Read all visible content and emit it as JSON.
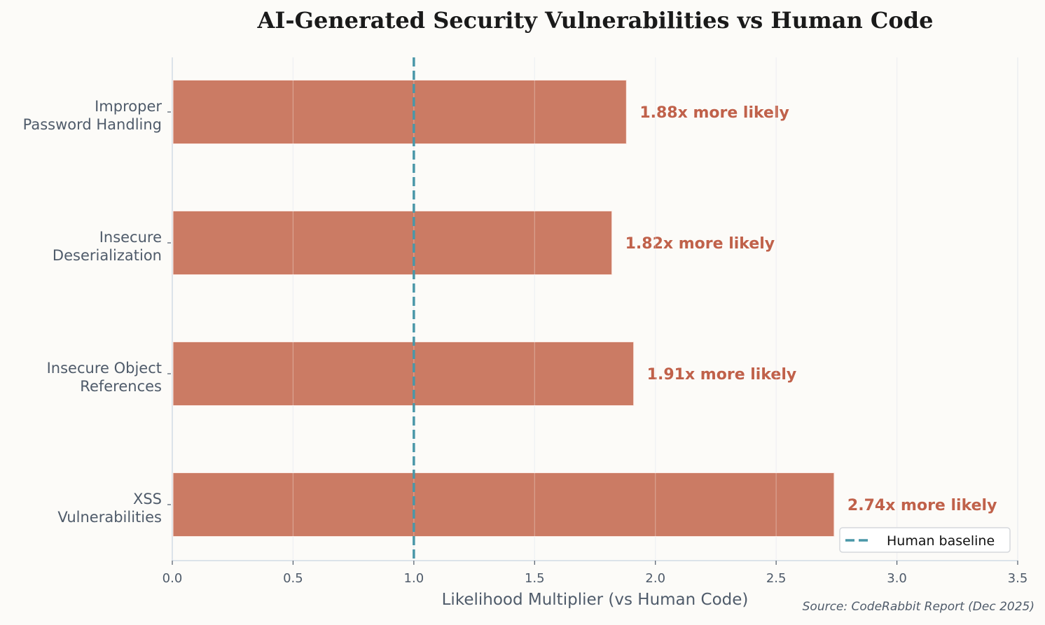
{
  "chart_data": {
    "type": "bar",
    "orientation": "horizontal",
    "title": "AI-Generated Security Vulnerabilities vs Human Code",
    "xlabel": "Likelihood Multiplier (vs Human Code)",
    "ylabel": "",
    "categories": [
      "XSS\nVulnerabilities",
      "Insecure Object\nReferences",
      "Insecure\nDeserialization",
      "Improper\nPassword Handling"
    ],
    "values": [
      2.74,
      1.91,
      1.82,
      1.88
    ],
    "data_labels": [
      "2.74x more likely",
      "1.91x more likely",
      "1.82x more likely",
      "1.88x more likely"
    ],
    "xlim": [
      0,
      3.5
    ],
    "xticks": [
      "0.0",
      "0.5",
      "1.0",
      "1.5",
      "2.0",
      "2.5",
      "3.0",
      "3.5"
    ],
    "reference_line": {
      "x": 1.0,
      "name": "Human baseline",
      "style": "dashed",
      "color": "#4a97a8"
    },
    "grid": "vertical",
    "legend": {
      "position": "bottom-right",
      "entries": [
        "Human baseline"
      ]
    },
    "bar_color": "#cb7b64",
    "label_color": "#c0614a",
    "source": "Source: CodeRabbit Report (Dec 2025)"
  }
}
